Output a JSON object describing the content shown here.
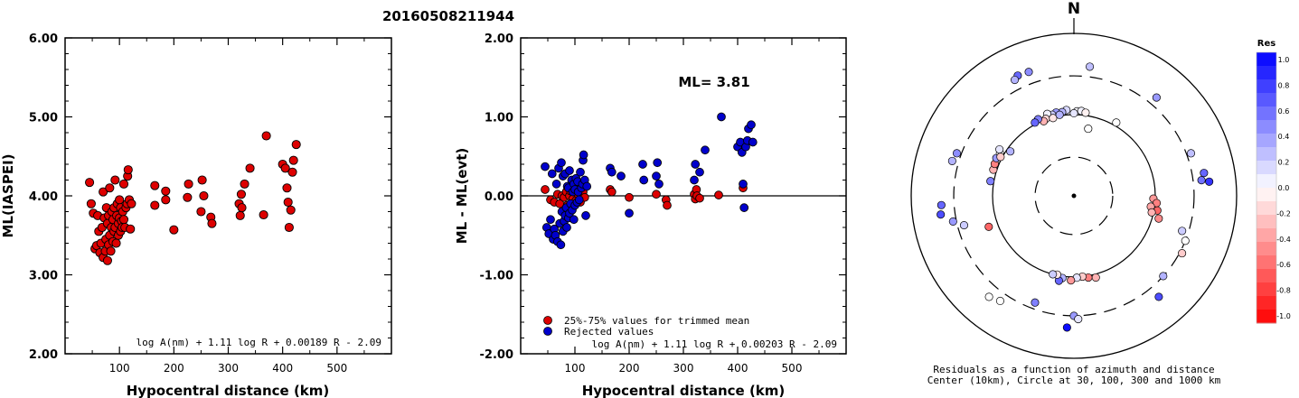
{
  "title": "20160508211944",
  "chart_data": [
    {
      "type": "scatter",
      "xlabel": "Hypocentral distance (km)",
      "ylabel": "ML(IASPEI)",
      "xlim": [
        0,
        600
      ],
      "ylim": [
        2.0,
        6.0
      ],
      "x_ticks": [
        "100",
        "200",
        "300",
        "400",
        "500"
      ],
      "y_ticks": [
        "2.00",
        "3.00",
        "4.00",
        "5.00",
        "6.00"
      ],
      "formula": "log A(nm) + 1.11 log R + 0.00189 R - 2.09",
      "marker_color": "#dd0000",
      "points": [
        [
          45,
          4.17
        ],
        [
          48,
          3.9
        ],
        [
          52,
          3.78
        ],
        [
          55,
          3.33
        ],
        [
          58,
          3.37
        ],
        [
          60,
          3.75
        ],
        [
          62,
          3.55
        ],
        [
          64,
          3.28
        ],
        [
          66,
          3.4
        ],
        [
          68,
          3.6
        ],
        [
          70,
          4.05
        ],
        [
          70,
          3.22
        ],
        [
          72,
          3.72
        ],
        [
          74,
          3.3
        ],
        [
          75,
          3.45
        ],
        [
          76,
          3.85
        ],
        [
          78,
          3.18
        ],
        [
          78,
          3.65
        ],
        [
          80,
          3.38
        ],
        [
          80,
          3.75
        ],
        [
          82,
          3.5
        ],
        [
          82,
          4.1
        ],
        [
          84,
          3.3
        ],
        [
          85,
          3.6
        ],
        [
          86,
          3.8
        ],
        [
          88,
          3.42
        ],
        [
          88,
          3.7
        ],
        [
          90,
          3.55
        ],
        [
          90,
          3.85
        ],
        [
          92,
          4.2
        ],
        [
          92,
          3.6
        ],
        [
          94,
          3.4
        ],
        [
          95,
          3.75
        ],
        [
          96,
          3.9
        ],
        [
          98,
          3.65
        ],
        [
          98,
          3.5
        ],
        [
          100,
          3.72
        ],
        [
          100,
          3.95
        ],
        [
          102,
          3.55
        ],
        [
          102,
          3.85
        ],
        [
          104,
          3.68
        ],
        [
          105,
          3.6
        ],
        [
          106,
          3.8
        ],
        [
          108,
          4.15
        ],
        [
          108,
          3.7
        ],
        [
          110,
          3.6
        ],
        [
          112,
          3.85
        ],
        [
          114,
          3.9
        ],
        [
          115,
          4.25
        ],
        [
          116,
          4.33
        ],
        [
          118,
          3.95
        ],
        [
          120,
          3.58
        ],
        [
          122,
          3.9
        ],
        [
          165,
          4.13
        ],
        [
          165,
          3.88
        ],
        [
          185,
          4.06
        ],
        [
          185,
          3.95
        ],
        [
          200,
          3.57
        ],
        [
          225,
          3.98
        ],
        [
          227,
          4.15
        ],
        [
          250,
          3.8
        ],
        [
          252,
          4.2
        ],
        [
          255,
          4.0
        ],
        [
          268,
          3.73
        ],
        [
          270,
          3.65
        ],
        [
          320,
          3.9
        ],
        [
          322,
          3.75
        ],
        [
          324,
          4.02
        ],
        [
          325,
          3.85
        ],
        [
          330,
          4.15
        ],
        [
          340,
          4.35
        ],
        [
          365,
          3.76
        ],
        [
          370,
          4.76
        ],
        [
          400,
          4.4
        ],
        [
          405,
          4.35
        ],
        [
          408,
          4.1
        ],
        [
          410,
          3.92
        ],
        [
          412,
          3.6
        ],
        [
          415,
          3.82
        ],
        [
          418,
          4.3
        ],
        [
          420,
          4.45
        ],
        [
          425,
          4.65
        ]
      ]
    },
    {
      "type": "scatter",
      "xlabel": "Hypocentral distance (km)",
      "ylabel": "ML - ML(evt)",
      "xlim": [
        0,
        600
      ],
      "ylim": [
        -2.0,
        2.0
      ],
      "x_ticks": [
        "100",
        "200",
        "300",
        "400",
        "500"
      ],
      "y_ticks": [
        "-2.00",
        "-1.00",
        "0.00",
        "1.00",
        "2.00"
      ],
      "annotation": "ML= 3.81",
      "formula": "log A(nm) + 1.11 log R + 0.00203 R - 2.09",
      "legend": [
        {
          "label": "25%-75% values for trimmed mean",
          "color": "#dd0000"
        },
        {
          "label": "Rejected values",
          "color": "#0000cc"
        }
      ],
      "legend_position": "bottom-left",
      "series": [
        {
          "name": "25%-75% values for trimmed mean",
          "color": "#dd0000",
          "points": [
            [
              45,
              0.08
            ],
            [
              55,
              -0.05
            ],
            [
              62,
              -0.08
            ],
            [
              68,
              0.02
            ],
            [
              72,
              -0.1
            ],
            [
              76,
              0.0
            ],
            [
              80,
              -0.02
            ],
            [
              84,
              0.05
            ],
            [
              86,
              -0.12
            ],
            [
              90,
              0.0
            ],
            [
              92,
              0.06
            ],
            [
              96,
              -0.04
            ],
            [
              100,
              0.08
            ],
            [
              102,
              -0.06
            ],
            [
              104,
              0.03
            ],
            [
              108,
              0.1
            ],
            [
              110,
              -0.08
            ],
            [
              112,
              0.0
            ],
            [
              115,
              0.05
            ],
            [
              118,
              -0.02
            ],
            [
              165,
              0.08
            ],
            [
              168,
              0.05
            ],
            [
              200,
              -0.02
            ],
            [
              250,
              0.02
            ],
            [
              268,
              -0.05
            ],
            [
              270,
              -0.12
            ],
            [
              320,
              0.02
            ],
            [
              322,
              -0.04
            ],
            [
              324,
              0.08
            ],
            [
              325,
              0.0
            ],
            [
              330,
              -0.03
            ],
            [
              365,
              0.01
            ],
            [
              410,
              0.1
            ]
          ]
        },
        {
          "name": "Rejected values",
          "color": "#0000cc",
          "points": [
            [
              45,
              0.37
            ],
            [
              48,
              -0.4
            ],
            [
              52,
              -0.48
            ],
            [
              55,
              -0.3
            ],
            [
              58,
              0.28
            ],
            [
              60,
              -0.55
            ],
            [
              62,
              -0.42
            ],
            [
              64,
              -0.5
            ],
            [
              66,
              0.15
            ],
            [
              68,
              -0.58
            ],
            [
              70,
              0.35
            ],
            [
              72,
              -0.35
            ],
            [
              74,
              -0.62
            ],
            [
              75,
              0.42
            ],
            [
              76,
              -0.2
            ],
            [
              78,
              -0.45
            ],
            [
              78,
              0.25
            ],
            [
              80,
              -0.32
            ],
            [
              82,
              0.28
            ],
            [
              82,
              -0.25
            ],
            [
              84,
              -0.15
            ],
            [
              85,
              -0.4
            ],
            [
              86,
              0.12
            ],
            [
              88,
              -0.28
            ],
            [
              88,
              0.1
            ],
            [
              90,
              -0.22
            ],
            [
              90,
              0.32
            ],
            [
              92,
              -0.1
            ],
            [
              94,
              0.2
            ],
            [
              95,
              -0.18
            ],
            [
              96,
              0.05
            ],
            [
              98,
              -0.3
            ],
            [
              98,
              0.15
            ],
            [
              100,
              -0.12
            ],
            [
              100,
              0.08
            ],
            [
              102,
              0.22
            ],
            [
              104,
              -0.08
            ],
            [
              105,
              0.18
            ],
            [
              106,
              0.05
            ],
            [
              108,
              -0.05
            ],
            [
              110,
              0.3
            ],
            [
              112,
              0.1
            ],
            [
              114,
              0.15
            ],
            [
              115,
              0.45
            ],
            [
              116,
              0.52
            ],
            [
              118,
              0.2
            ],
            [
              120,
              -0.25
            ],
            [
              122,
              0.12
            ],
            [
              165,
              0.35
            ],
            [
              168,
              0.3
            ],
            [
              185,
              0.25
            ],
            [
              200,
              -0.22
            ],
            [
              225,
              0.4
            ],
            [
              227,
              0.2
            ],
            [
              250,
              0.25
            ],
            [
              252,
              0.42
            ],
            [
              255,
              0.15
            ],
            [
              320,
              0.2
            ],
            [
              322,
              0.4
            ],
            [
              330,
              0.3
            ],
            [
              340,
              0.58
            ],
            [
              370,
              1.0
            ],
            [
              400,
              0.62
            ],
            [
              405,
              0.68
            ],
            [
              408,
              0.55
            ],
            [
              410,
              0.15
            ],
            [
              412,
              -0.15
            ],
            [
              415,
              0.62
            ],
            [
              418,
              0.7
            ],
            [
              420,
              0.85
            ],
            [
              425,
              0.9
            ],
            [
              428,
              0.68
            ]
          ]
        }
      ]
    },
    {
      "type": "scatter",
      "subtype": "polar-azimuth-distance",
      "north_label": "N",
      "caption_line1": "Residuals as a function of azimuth and distance",
      "caption_line2": "Center (10km), Circle at 30, 100, 300 and 1000 km",
      "rings_km": [
        10,
        30,
        100,
        300,
        1000
      ],
      "colorbar_title": "Res",
      "colorbar_ticks": [
        "1.0",
        "0.8",
        "0.6",
        "0.4",
        "0.2",
        "0.0",
        "-0.2",
        "-0.4",
        "-0.6",
        "-0.8",
        "-1.0"
      ],
      "colorbar_range": [
        -1.0,
        1.0
      ],
      "stations": [
        {
          "az": 2,
          "dist": 110,
          "res": 0.02
        },
        {
          "az": 5,
          "dist": 112,
          "res": 0.05
        },
        {
          "az": 8,
          "dist": 108,
          "res": -0.05
        },
        {
          "az": 355,
          "dist": 115,
          "res": 0.15
        },
        {
          "az": 352,
          "dist": 110,
          "res": 0.3
        },
        {
          "az": 348,
          "dist": 112,
          "res": 0.4
        },
        {
          "az": 345,
          "dist": 108,
          "res": 0.2
        },
        {
          "az": 342,
          "dist": 115,
          "res": 0.05
        },
        {
          "az": 340,
          "dist": 102,
          "res": -0.15
        },
        {
          "az": 338,
          "dist": 98,
          "res": -0.3
        },
        {
          "az": 345,
          "dist": 98,
          "res": -0.1
        },
        {
          "az": 0,
          "dist": 104,
          "res": 0.1
        },
        {
          "az": 335,
          "dist": 110,
          "res": 0.5
        },
        {
          "az": 332,
          "dist": 105,
          "res": 0.6
        },
        {
          "az": 350,
          "dist": 103,
          "res": 0.3
        },
        {
          "az": 340,
          "dist": 420,
          "res": 0.45
        },
        {
          "az": 335,
          "dist": 430,
          "res": 0.6
        },
        {
          "az": 333,
          "dist": 400,
          "res": 0.3
        },
        {
          "az": 7,
          "dist": 400,
          "res": 0.25
        },
        {
          "az": 12,
          "dist": 70,
          "res": 0.0
        },
        {
          "az": 30,
          "dist": 110,
          "res": 0.0
        },
        {
          "az": 40,
          "dist": 380,
          "res": 0.4
        },
        {
          "az": 70,
          "dist": 340,
          "res": 0.25
        },
        {
          "az": 80,
          "dist": 420,
          "res": 0.6
        },
        {
          "az": 84,
          "dist": 470,
          "res": 0.8
        },
        {
          "az": 83,
          "dist": 380,
          "res": 0.55
        },
        {
          "az": 92,
          "dist": 95,
          "res": -0.4
        },
        {
          "az": 95,
          "dist": 105,
          "res": -0.5
        },
        {
          "az": 98,
          "dist": 90,
          "res": -0.35
        },
        {
          "az": 100,
          "dist": 110,
          "res": -0.6
        },
        {
          "az": 102,
          "dist": 95,
          "res": -0.3
        },
        {
          "az": 105,
          "dist": 120,
          "res": -0.45
        },
        {
          "az": 108,
          "dist": 250,
          "res": 0.2
        },
        {
          "az": 112,
          "dist": 300,
          "res": 0.0
        },
        {
          "az": 118,
          "dist": 320,
          "res": -0.2
        },
        {
          "az": 132,
          "dist": 300,
          "res": 0.3
        },
        {
          "az": 140,
          "dist": 420,
          "res": 0.7
        },
        {
          "az": 165,
          "dist": 110,
          "res": -0.3
        },
        {
          "az": 170,
          "dist": 105,
          "res": -0.5
        },
        {
          "az": 174,
          "dist": 100,
          "res": -0.2
        },
        {
          "az": 178,
          "dist": 102,
          "res": 0.1
        },
        {
          "az": 182,
          "dist": 110,
          "res": -0.4
        },
        {
          "az": 188,
          "dist": 105,
          "res": 0.3
        },
        {
          "az": 190,
          "dist": 115,
          "res": 0.6
        },
        {
          "az": 192,
          "dist": 98,
          "res": -0.1
        },
        {
          "az": 195,
          "dist": 100,
          "res": 0.2
        },
        {
          "az": 180,
          "dist": 300,
          "res": 0.4
        },
        {
          "az": 178,
          "dist": 330,
          "res": 0.1
        },
        {
          "az": 183,
          "dist": 420,
          "res": 0.95
        },
        {
          "az": 200,
          "dist": 250,
          "res": 0.5
        },
        {
          "az": 215,
          "dist": 380,
          "res": 0.0
        },
        {
          "az": 220,
          "dist": 420,
          "res": 0.0
        },
        {
          "az": 250,
          "dist": 130,
          "res": -0.6
        },
        {
          "az": 255,
          "dist": 250,
          "res": 0.2
        },
        {
          "az": 258,
          "dist": 330,
          "res": 0.4
        },
        {
          "az": 262,
          "dist": 450,
          "res": 0.7
        },
        {
          "az": 266,
          "dist": 430,
          "res": 0.6
        },
        {
          "az": 280,
          "dist": 110,
          "res": 0.5
        },
        {
          "az": 288,
          "dist": 110,
          "res": -0.3
        },
        {
          "az": 292,
          "dist": 112,
          "res": -0.5
        },
        {
          "az": 296,
          "dist": 115,
          "res": 0.4
        },
        {
          "az": 300,
          "dist": 112,
          "res": 0.0
        },
        {
          "az": 302,
          "dist": 120,
          "res": 0.1
        },
        {
          "az": 298,
          "dist": 105,
          "res": -0.2
        },
        {
          "az": 305,
          "dist": 90,
          "res": 0.3
        },
        {
          "az": 290,
          "dist": 340,
          "res": 0.45
        },
        {
          "az": 286,
          "dist": 360,
          "res": 0.3
        }
      ]
    }
  ]
}
